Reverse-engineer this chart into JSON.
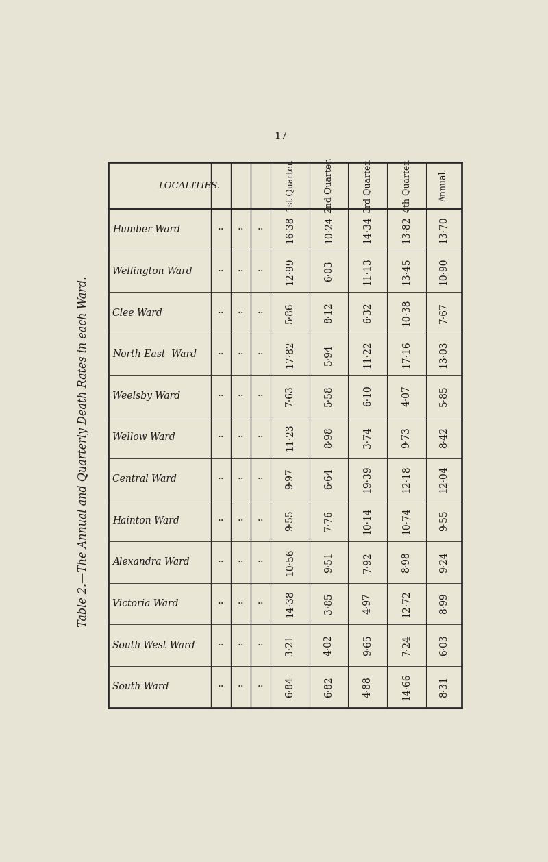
{
  "title": "Table 2.—The Annual and Quarterly Death Rates in each Ward.",
  "page_number": "17",
  "col_headers": [
    "LOCALITIES.",
    "1st Quarter.",
    "2nd Quarter.",
    "3rd Quarter.",
    "4th Quarter.",
    "Annual."
  ],
  "rows": [
    [
      "Humber Ward",
      "16·38",
      "10·24",
      "14·34",
      "13·82",
      "13·70"
    ],
    [
      "Wellington Ward",
      "12·99",
      "6·03",
      "11·13",
      "13·45",
      "10·90"
    ],
    [
      "Clee Ward",
      "5·86",
      "8·12",
      "6·32",
      "10·38",
      "7·67"
    ],
    [
      "North-East  Ward",
      "17·82",
      "5·94",
      "11·22",
      "17·16",
      "13·03"
    ],
    [
      "Weelsby Ward",
      "7·63",
      "5·58",
      "6·10",
      "4·07",
      "5·85"
    ],
    [
      "Wellow Ward",
      "11·23",
      "8·98",
      "3·74",
      "9·73",
      "8·42"
    ],
    [
      "Central Ward",
      "9·97",
      "6·64",
      "19·39",
      "12·18",
      "12·04"
    ],
    [
      "Hainton Ward",
      "9·55",
      "7·76",
      "10·14",
      "10·74",
      "9·55"
    ],
    [
      "Alexandra Ward",
      "10·56",
      "9·51",
      "7·92",
      "8·98",
      "9·24"
    ],
    [
      "Victoria Ward",
      "14·38",
      "3·85",
      "4·97",
      "12·72",
      "8·99"
    ],
    [
      "South-West Ward",
      "3·21",
      "4·02",
      "9·65",
      "7·24",
      "6·03"
    ],
    [
      "South Ward",
      "6·84",
      "6·82",
      "4·88",
      "14·66",
      "8·31"
    ]
  ],
  "dots_rows": [
    "Clee Ward",
    "South Ward"
  ],
  "bg_color": "#e8e4d5",
  "table_bg": "#eae6d6",
  "border_color": "#2a2a2a",
  "text_color": "#1a1a1a",
  "header_fontsize": 9.0,
  "cell_fontsize": 10.0,
  "locality_fontsize": 10.0,
  "title_fontsize": 11.5,
  "page_num_fontsize": 11
}
